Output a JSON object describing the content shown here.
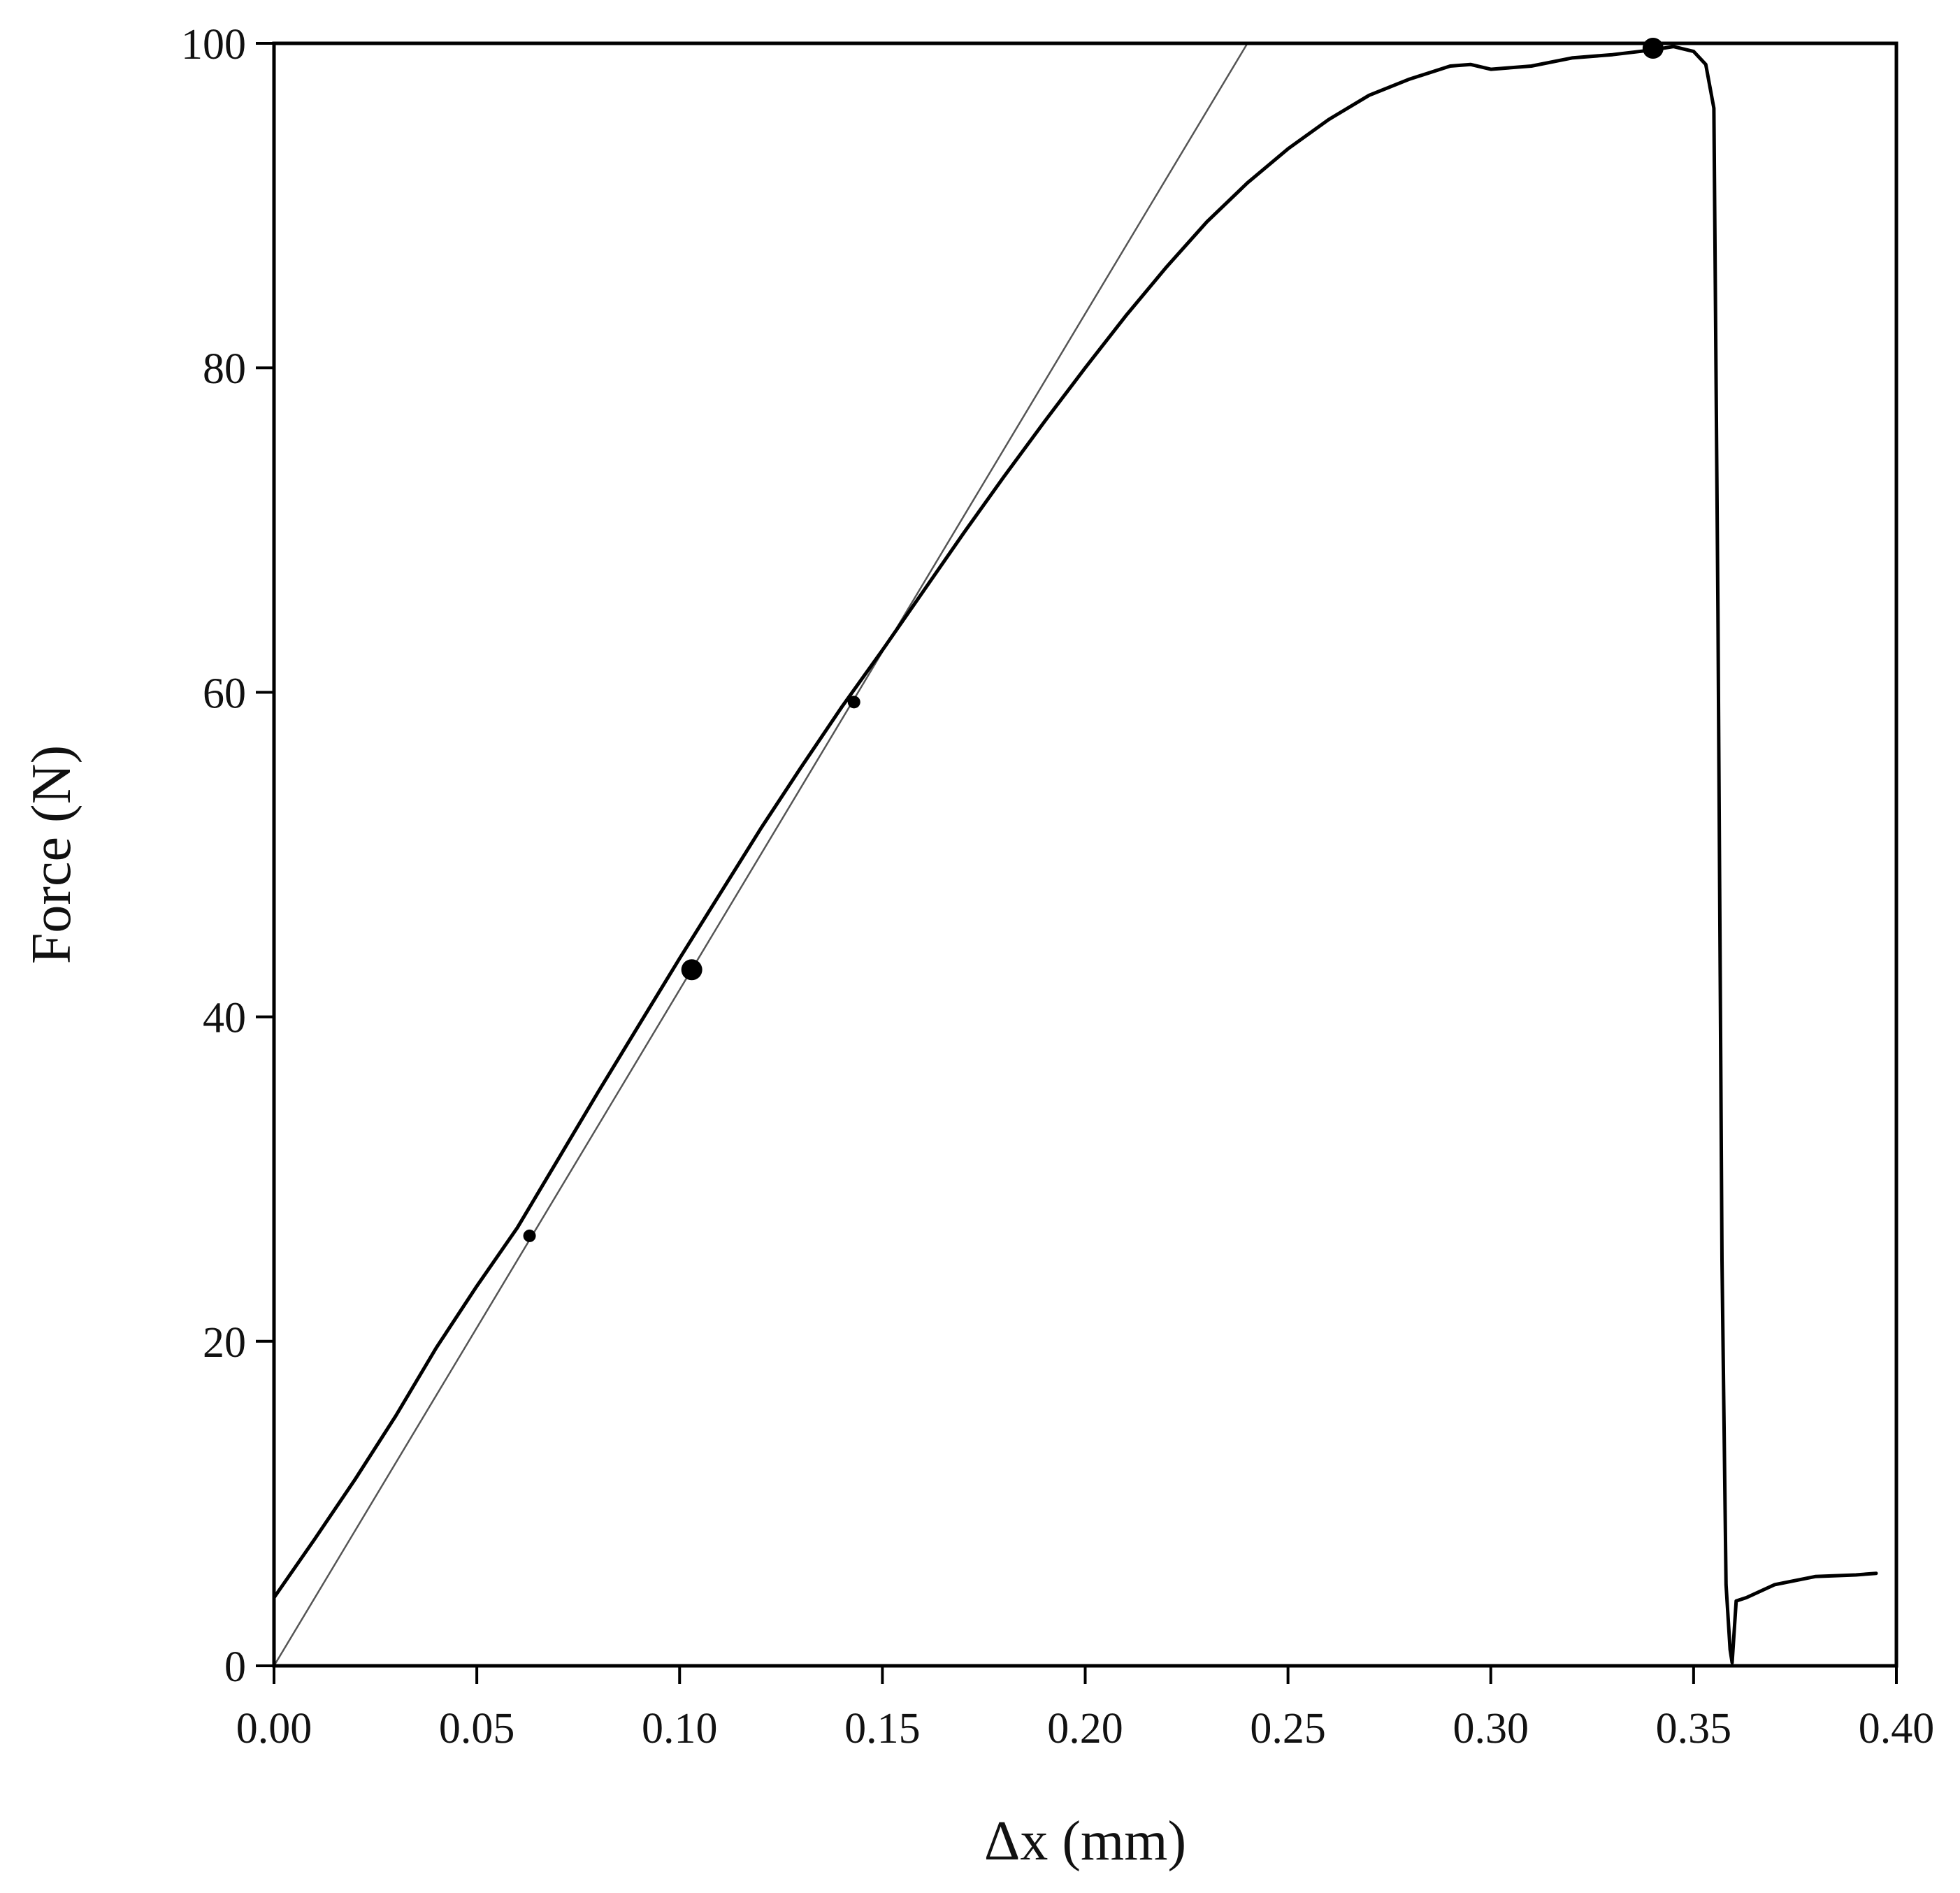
{
  "chart_data": {
    "type": "line",
    "title": "",
    "xlabel": "Δx (mm)",
    "ylabel": "Force (N)",
    "xlim": [
      0.0,
      0.4
    ],
    "ylim": [
      0,
      100
    ],
    "xticks": [
      "0.00",
      "0.05",
      "0.10",
      "0.15",
      "0.20",
      "0.25",
      "0.30",
      "0.35",
      "0.40"
    ],
    "yticks": [
      "0",
      "20",
      "40",
      "60",
      "80",
      "100"
    ],
    "xtick_values": [
      0.0,
      0.05,
      0.1,
      0.15,
      0.2,
      0.25,
      0.3,
      0.35,
      0.4
    ],
    "ytick_values": [
      0,
      20,
      40,
      60,
      80,
      100
    ],
    "grid": false,
    "legend": "none",
    "colors": {
      "curve": "#000000",
      "tangent": "#555555",
      "frame": "#000000"
    },
    "series": [
      {
        "role": "measured-curve",
        "x": [
          0.0,
          0.01,
          0.02,
          0.03,
          0.04,
          0.05,
          0.06,
          0.07,
          0.08,
          0.09,
          0.1,
          0.11,
          0.12,
          0.13,
          0.14,
          0.15,
          0.16,
          0.17,
          0.18,
          0.19,
          0.2,
          0.21,
          0.22,
          0.23,
          0.24,
          0.25,
          0.26,
          0.27,
          0.28,
          0.29,
          0.295,
          0.3,
          0.31,
          0.32,
          0.33,
          0.34,
          0.345,
          0.35,
          0.353,
          0.355,
          0.356,
          0.357,
          0.358,
          0.359,
          0.3595,
          0.3605,
          0.363,
          0.37,
          0.38,
          0.39,
          0.395
        ],
        "y": [
          4.2,
          7.8,
          11.5,
          15.4,
          19.6,
          23.4,
          27.0,
          31.2,
          35.4,
          39.5,
          43.6,
          47.6,
          51.6,
          55.4,
          59.1,
          62.6,
          66.2,
          69.8,
          73.3,
          76.7,
          80.0,
          83.2,
          86.2,
          89.0,
          91.4,
          93.5,
          95.3,
          96.8,
          97.8,
          98.6,
          98.7,
          98.4,
          98.6,
          99.1,
          99.3,
          99.6,
          99.8,
          99.5,
          98.7,
          96.0,
          65.0,
          25.0,
          5.0,
          1.0,
          0.2,
          4.0,
          4.2,
          5.0,
          5.5,
          5.6,
          5.7
        ]
      },
      {
        "role": "tangent-line",
        "x": [
          0.0,
          0.24
        ],
        "y": [
          0,
          100
        ]
      }
    ],
    "markers": [
      {
        "x": 0.063,
        "y": 26.5,
        "size": "small"
      },
      {
        "x": 0.103,
        "y": 42.9,
        "size": "large"
      },
      {
        "x": 0.143,
        "y": 59.4,
        "size": "small"
      },
      {
        "x": 0.34,
        "y": 99.7,
        "size": "large"
      }
    ]
  }
}
